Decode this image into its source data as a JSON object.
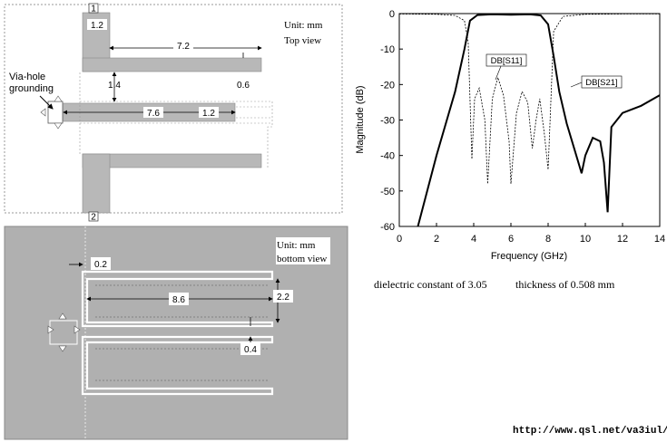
{
  "top_view": {
    "port1": "1",
    "port2": "2",
    "unit": "Unit: mm",
    "view": "Top view",
    "via_label_line1": "Via-hole",
    "via_label_line2": "grounding",
    "dim_w_feed": "1.2",
    "dim_len_upper": "7.2",
    "dim_gap": "1.4",
    "dim_gap2": "0.6",
    "dim_len_mid": "7.6",
    "dim_w_mid": "1.2"
  },
  "bottom_view": {
    "unit": "Unit: mm",
    "view": "bottom view",
    "dim_a": "0.2",
    "dim_len": "8.6",
    "dim_h": "2.2",
    "dim_gap": "0.4"
  },
  "chart_data": {
    "type": "line",
    "xlabel": "Frequency (GHz)",
    "ylabel": "Magnitude (dB)",
    "xlim": [
      0,
      14
    ],
    "ylim": [
      -60,
      0
    ],
    "xticks": [
      "0",
      "2",
      "4",
      "6",
      "8",
      "10",
      "12",
      "14"
    ],
    "yticks": [
      "0",
      "-10",
      "-20",
      "-30",
      "-40",
      "-50",
      "-60"
    ],
    "series": [
      {
        "name": "DB[S21]",
        "style": "solid-thick",
        "x": [
          1.0,
          2.0,
          3.0,
          3.5,
          3.8,
          4.2,
          5.0,
          6.0,
          7.0,
          7.6,
          8.0,
          8.3,
          8.6,
          9.0,
          9.4,
          9.8,
          10.0,
          10.4,
          10.8,
          11.0,
          11.2,
          11.4,
          12.0,
          13.0,
          14.0
        ],
        "y": [
          -60,
          -40,
          -22,
          -10,
          -2,
          -0.4,
          -0.2,
          -0.3,
          -0.2,
          -0.5,
          -3,
          -12,
          -22,
          -31,
          -38,
          -45,
          -40,
          -35,
          -36,
          -42,
          -56,
          -32,
          -28,
          -26,
          -23
        ]
      },
      {
        "name": "DB[S11]",
        "style": "dashed",
        "x": [
          0,
          2,
          3,
          3.5,
          3.7,
          3.9,
          4.05,
          4.3,
          4.6,
          4.75,
          5.0,
          5.3,
          5.6,
          5.9,
          6.0,
          6.3,
          6.6,
          6.9,
          7.15,
          7.35,
          7.55,
          7.8,
          8.0,
          8.3,
          8.8,
          10,
          12,
          14
        ],
        "y": [
          -0.1,
          -0.2,
          -0.5,
          -2,
          -8,
          -41,
          -24,
          -21,
          -30,
          -48,
          -24,
          -18,
          -23,
          -36,
          -48,
          -28,
          -22,
          -25,
          -38,
          -30,
          -24,
          -34,
          -44,
          -5,
          -0.8,
          -0.2,
          -0.1,
          -0.1
        ]
      }
    ]
  },
  "substrate": {
    "dielectric": "dielectric constant of 3.05",
    "thickness": "thickness of 0.508 mm"
  },
  "url": "http://www.qsl.net/va3iul/"
}
